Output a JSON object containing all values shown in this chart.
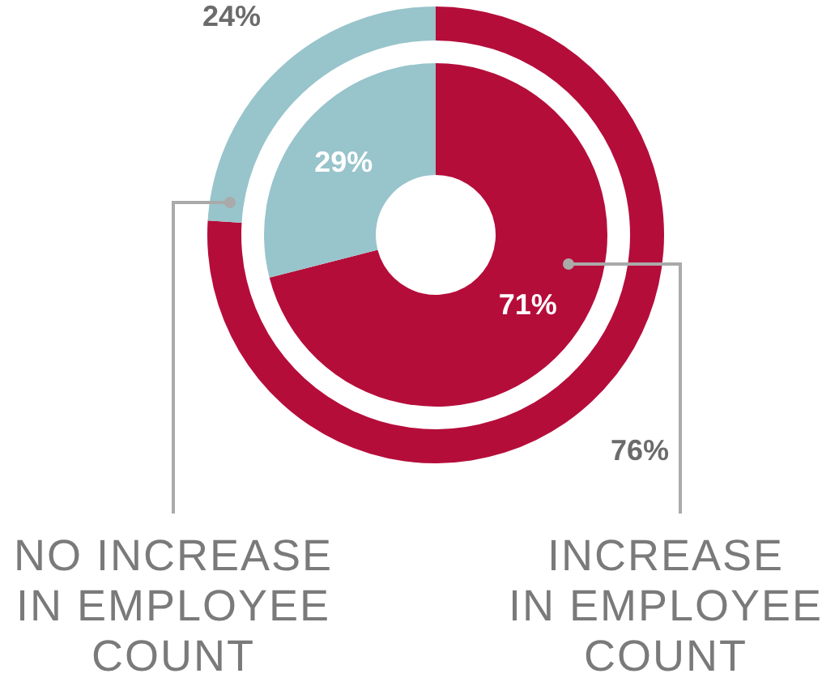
{
  "chart_data": {
    "type": "donut",
    "categories": [
      "INCREASE\nIN EMPLOYEE\nCOUNT",
      "NO INCREASE\nIN EMPLOYEE\nCOUNT"
    ],
    "colors": [
      "#b50d3a",
      "#98c4cb"
    ],
    "series": [
      {
        "values": [
          76,
          24
        ],
        "value_labels": [
          "76%",
          "24%"
        ]
      },
      {
        "values": [
          71,
          29
        ],
        "value_labels": [
          "71%",
          "29%"
        ]
      }
    ]
  }
}
